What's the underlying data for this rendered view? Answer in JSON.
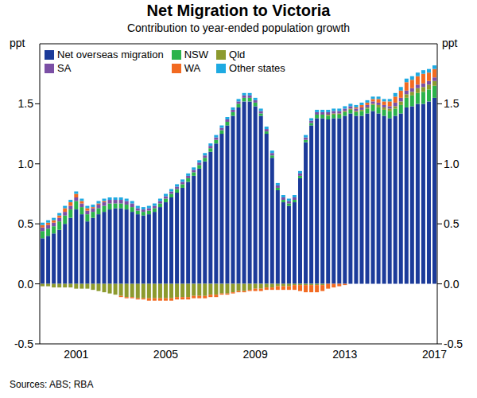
{
  "chart_data": {
    "type": "bar",
    "title": "Net Migration to Victoria",
    "subtitle": "Contribution to year-ended population growth",
    "ylabel": "ppt",
    "note": "Sources: ABS; RBA",
    "stacked": true,
    "grid": false,
    "legend": "upper left",
    "ylim": [
      -0.5,
      2.0
    ],
    "yticks": [
      {
        "value": -0.5,
        "label": "-0.5"
      },
      {
        "value": 0,
        "label": "0.0"
      },
      {
        "value": 0.5,
        "label": "0.5"
      },
      {
        "value": 1,
        "label": "1.0"
      },
      {
        "value": 1.5,
        "label": "1.5"
      }
    ],
    "categories": [
      null,
      null,
      null,
      null,
      null,
      null,
      "2001",
      null,
      null,
      null,
      null,
      null,
      null,
      null,
      null,
      null,
      null,
      null,
      null,
      null,
      null,
      null,
      "2005",
      null,
      null,
      null,
      null,
      null,
      null,
      null,
      null,
      null,
      null,
      null,
      null,
      null,
      null,
      null,
      "2009",
      null,
      null,
      null,
      null,
      null,
      null,
      null,
      null,
      null,
      null,
      null,
      null,
      null,
      null,
      null,
      "2013",
      null,
      null,
      null,
      null,
      null,
      null,
      null,
      null,
      null,
      null,
      null,
      null,
      null,
      null,
      null,
      "2017"
    ],
    "series": [
      {
        "name": "Net overseas migration",
        "color": "#1c3b9a",
        "values": [
          0.38,
          0.4,
          0.42,
          0.45,
          0.5,
          0.55,
          0.62,
          0.58,
          0.52,
          0.55,
          0.58,
          0.6,
          0.62,
          0.63,
          0.63,
          0.62,
          0.6,
          0.58,
          0.57,
          0.58,
          0.6,
          0.64,
          0.68,
          0.72,
          0.76,
          0.8,
          0.85,
          0.9,
          0.96,
          1.02,
          1.1,
          1.17,
          1.25,
          1.32,
          1.4,
          1.47,
          1.52,
          1.52,
          1.48,
          1.4,
          1.25,
          1.05,
          0.78,
          0.68,
          0.65,
          0.68,
          0.88,
          1.18,
          1.32,
          1.38,
          1.38,
          1.37,
          1.38,
          1.38,
          1.4,
          1.42,
          1.4,
          1.4,
          1.42,
          1.44,
          1.42,
          1.4,
          1.38,
          1.4,
          1.42,
          1.47,
          1.48,
          1.5,
          1.5,
          1.52,
          1.55
        ]
      },
      {
        "name": "NSW",
        "color": "#2bb34b",
        "values": [
          0.06,
          0.06,
          0.06,
          0.07,
          0.07,
          0.07,
          0.07,
          0.06,
          0.06,
          0.05,
          0.05,
          0.05,
          0.05,
          0.04,
          0.04,
          0.04,
          0.04,
          0.03,
          0.03,
          0.03,
          0.03,
          0.03,
          0.03,
          0.03,
          0.03,
          0.03,
          0.03,
          0.03,
          0.03,
          0.03,
          0.03,
          0.03,
          0.03,
          0.03,
          0.03,
          0.03,
          0.03,
          0.03,
          0.03,
          0.02,
          0.02,
          0.02,
          0.02,
          0.02,
          0.02,
          0.02,
          0.02,
          0.02,
          0.02,
          0.03,
          0.03,
          0.03,
          0.03,
          0.03,
          0.03,
          0.03,
          0.03,
          0.04,
          0.04,
          0.05,
          0.05,
          0.05,
          0.06,
          0.06,
          0.07,
          0.08,
          0.09,
          0.09,
          0.1,
          0.1,
          0.1
        ]
      },
      {
        "name": "Qld",
        "color": "#8c9a2e",
        "values": [
          -0.02,
          -0.02,
          -0.03,
          -0.03,
          -0.03,
          -0.03,
          -0.04,
          -0.04,
          -0.04,
          -0.05,
          -0.06,
          -0.07,
          -0.08,
          -0.09,
          -0.1,
          -0.11,
          -0.11,
          -0.12,
          -0.12,
          -0.12,
          -0.12,
          -0.12,
          -0.12,
          -0.12,
          -0.11,
          -0.11,
          -0.11,
          -0.1,
          -0.1,
          -0.1,
          -0.09,
          -0.09,
          -0.08,
          -0.08,
          -0.07,
          -0.06,
          -0.06,
          -0.05,
          -0.04,
          -0.04,
          -0.03,
          -0.03,
          -0.02,
          -0.02,
          -0.02,
          -0.01,
          -0.01,
          -0.01,
          -0.01,
          -0.01,
          -0.01,
          0.01,
          0.01,
          0.01,
          0.01,
          0.01,
          0.01,
          0.01,
          0.01,
          0.01,
          0.02,
          0.02,
          0.02,
          0.02,
          0.03,
          0.03,
          0.03,
          0.04,
          0.04,
          0.04,
          0.04
        ]
      },
      {
        "name": "SA",
        "color": "#7b4fa5",
        "values": [
          0.03,
          0.03,
          0.03,
          0.03,
          0.03,
          0.03,
          0.03,
          0.03,
          0.03,
          0.03,
          0.03,
          0.03,
          0.03,
          0.03,
          0.03,
          0.03,
          0.03,
          0.02,
          0.02,
          0.02,
          0.02,
          0.02,
          0.02,
          0.02,
          0.02,
          0.02,
          0.02,
          0.02,
          0.02,
          0.02,
          0.02,
          0.02,
          0.02,
          0.02,
          0.02,
          0.02,
          0.02,
          0.02,
          0.02,
          0.02,
          0.02,
          0.02,
          0.02,
          0.02,
          0.02,
          0.02,
          0.02,
          0.02,
          0.02,
          0.02,
          0.02,
          0.02,
          0.02,
          0.02,
          0.02,
          0.02,
          0.02,
          0.02,
          0.02,
          0.02,
          0.02,
          0.02,
          0.02,
          0.03,
          0.03,
          0.03,
          0.03,
          0.03,
          0.03,
          0.03,
          0.03
        ]
      },
      {
        "name": "WA",
        "color": "#f26a21",
        "values": [
          0.02,
          0.02,
          0.02,
          0.02,
          0.03,
          0.03,
          0.03,
          0.02,
          0.02,
          0.01,
          0.01,
          0.01,
          0,
          0,
          -0.01,
          -0.01,
          -0.01,
          -0.01,
          -0.01,
          -0.02,
          -0.02,
          -0.02,
          -0.02,
          -0.02,
          -0.02,
          -0.02,
          -0.02,
          -0.02,
          -0.02,
          -0.02,
          -0.02,
          -0.02,
          -0.01,
          -0.01,
          -0.01,
          -0.01,
          -0.01,
          -0.01,
          -0.02,
          -0.02,
          -0.02,
          -0.02,
          -0.03,
          -0.03,
          -0.03,
          -0.04,
          -0.05,
          -0.06,
          -0.06,
          -0.06,
          -0.05,
          -0.04,
          -0.03,
          -0.02,
          -0.01,
          0,
          0.01,
          0.02,
          0.02,
          0.02,
          0.03,
          0.03,
          0.04,
          0.05,
          0.06,
          0.07,
          0.07,
          0.07,
          0.08,
          0.07,
          0.07
        ]
      },
      {
        "name": "Other states",
        "color": "#1eaae2",
        "values": [
          0.02,
          0.02,
          0.02,
          0.02,
          0.02,
          0.02,
          0.02,
          0.02,
          0.02,
          0.02,
          0.02,
          0.02,
          0.02,
          0.02,
          0.02,
          0.02,
          0.02,
          0.02,
          0.02,
          0.02,
          0.02,
          0.02,
          0.02,
          0.02,
          0.02,
          0.02,
          0.02,
          0.02,
          0.02,
          0.02,
          0.02,
          0.02,
          0.02,
          0.02,
          0.02,
          0.02,
          0.02,
          0.02,
          0.02,
          0.02,
          0.02,
          0.02,
          0.02,
          0.02,
          0.02,
          0.02,
          0.02,
          0.02,
          0.02,
          0.02,
          0.02,
          0.02,
          0.02,
          0.02,
          0.02,
          0.02,
          0.02,
          0.02,
          0.02,
          0.02,
          0.02,
          0.02,
          0.02,
          0.03,
          0.03,
          0.03,
          0.03,
          0.03,
          0.03,
          0.03,
          0.03
        ]
      }
    ]
  }
}
